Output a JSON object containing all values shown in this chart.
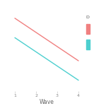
{
  "title": "",
  "xlabel": "Wave",
  "ylabel": "",
  "line1": {
    "x": [
      1,
      4
    ],
    "y": [
      0.82,
      0.12
    ],
    "color": "#F08080",
    "linewidth": 1.0
  },
  "line2": {
    "x": [
      1,
      4
    ],
    "y": [
      0.5,
      -0.2
    ],
    "color": "#4DCFCF",
    "linewidth": 1.0
  },
  "xlim": [
    0.7,
    4.3
  ],
  "ylim": [
    -0.38,
    1.05
  ],
  "xticks": [
    1,
    2,
    3,
    4
  ],
  "background_color": "#ffffff",
  "grid_color": "#dddddd",
  "legend_title": "D",
  "legend_color_top": "#F08080",
  "legend_color_bottom": "#4DCFCF",
  "tick_fontsize": 4.5,
  "xlabel_fontsize": 5.5,
  "legend_title_fontsize": 4.5,
  "legend_marker_fontsize": 4.0
}
